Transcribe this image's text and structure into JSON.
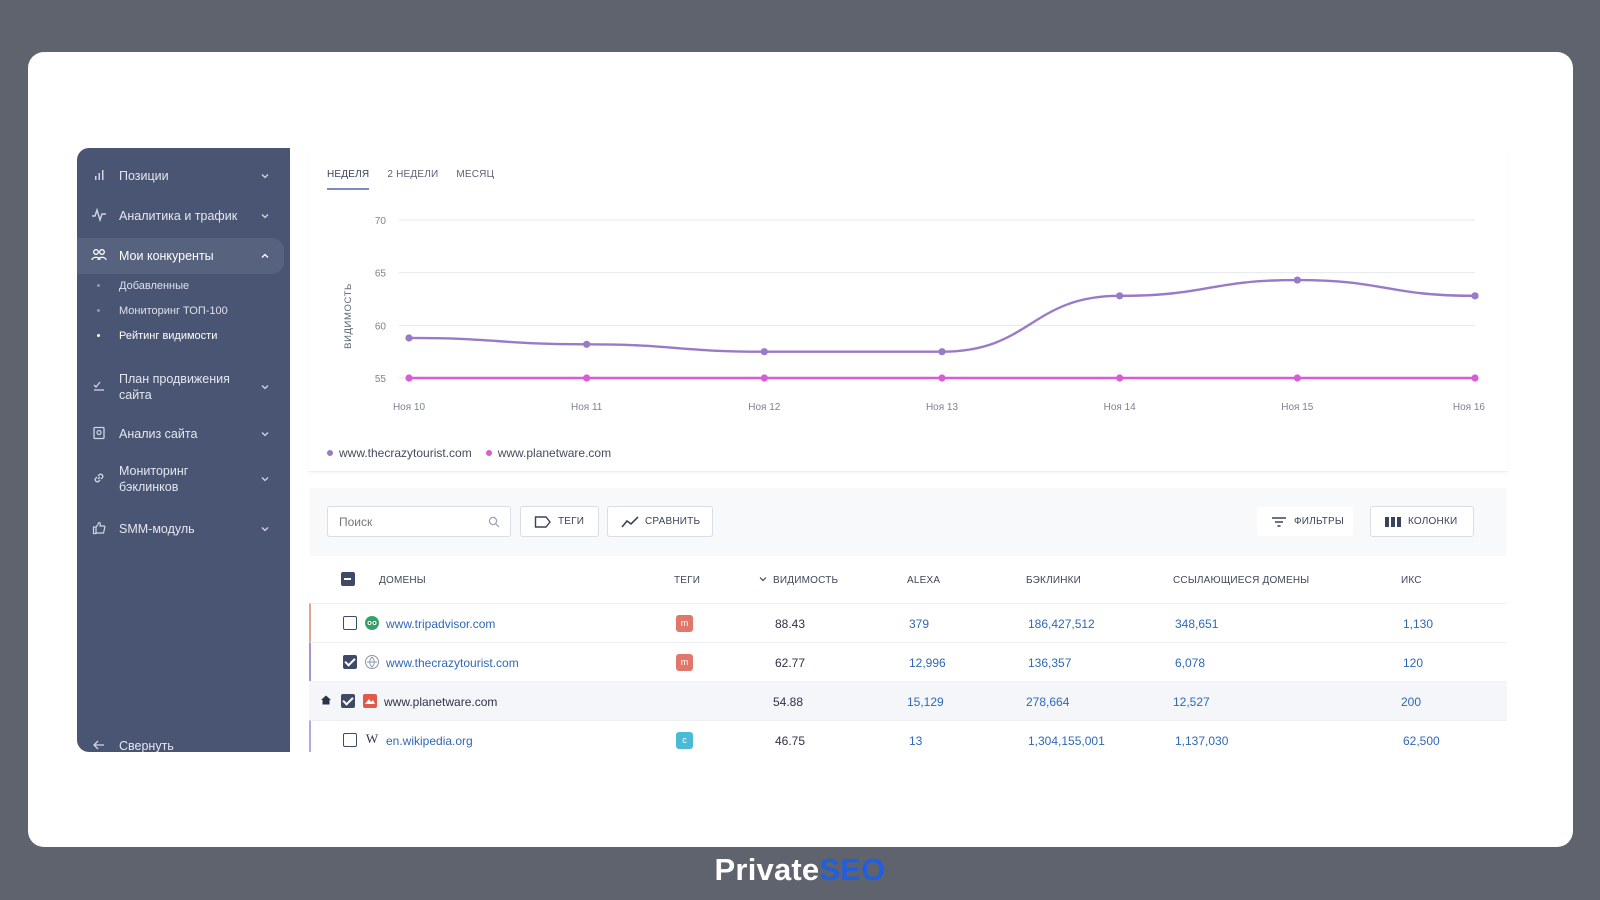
{
  "sidebar": {
    "items": [
      {
        "label": "Позиции"
      },
      {
        "label": "Аналитика и трафик"
      },
      {
        "label": "Мои конкуренты"
      },
      {
        "label": "План продвижения сайта"
      },
      {
        "label": "Анализ сайта"
      },
      {
        "label": "Мониторинг бэклинков"
      },
      {
        "label": "SMM-модуль"
      }
    ],
    "subitems": [
      "Добавленные",
      "Мониторинг ТОП-100",
      "Рейтинг видимости"
    ],
    "collapse_label": "Свернуть"
  },
  "chart_tabs": [
    "НЕДЕЛЯ",
    "2 НЕДЕЛИ",
    "МЕСЯЦ"
  ],
  "chart_data": {
    "type": "line",
    "x": [
      "Ноя 10",
      "Ноя 11",
      "Ноя 12",
      "Ноя 13",
      "Ноя 14",
      "Ноя 15",
      "Ноя 16"
    ],
    "ylabel": "ВИДИМОСТЬ",
    "ylim": [
      55,
      70
    ],
    "yticks": [
      70,
      65,
      60,
      55
    ],
    "grid": true,
    "legend": "bottom-left",
    "series": [
      {
        "name": "www.thecrazytourist.com",
        "color": "#9a7ac8",
        "values": [
          58.8,
          58.2,
          57.5,
          57.5,
          62.8,
          64.3,
          62.8
        ]
      },
      {
        "name": "www.planetware.com",
        "color": "#d95bd6",
        "values": [
          55,
          55,
          55,
          55,
          55,
          55,
          55
        ]
      }
    ]
  },
  "toolbar": {
    "search_placeholder": "Поиск",
    "tags_label": "ТЕГИ",
    "compare_label": "СРАВНИТЬ",
    "filters_label": "ФИЛЬТРЫ",
    "columns_label": "КОЛОНКИ"
  },
  "table": {
    "headers": {
      "domains": "ДОМЕНЫ",
      "tags": "ТЕГИ",
      "visibility": "ВИДИМОСТЬ",
      "alexa": "ALEXA",
      "backlinks": "БЭКЛИНКИ",
      "ref_domains": "ССЫЛАЮЩИЕСЯ ДОМЕНЫ",
      "iks": "ИКС"
    },
    "rows": [
      {
        "domain": "www.tripadvisor.com",
        "tag": "m",
        "visibility": "88.43",
        "alexa": "379",
        "backlinks": "186,427,512",
        "ref_domains": "348,651",
        "iks": "1,130"
      },
      {
        "domain": "www.thecrazytourist.com",
        "tag": "m",
        "visibility": "62.77",
        "alexa": "12,996",
        "backlinks": "136,357",
        "ref_domains": "6,078",
        "iks": "120"
      },
      {
        "domain": "www.planetware.com",
        "tag": "",
        "visibility": "54.88",
        "alexa": "15,129",
        "backlinks": "278,664",
        "ref_domains": "12,527",
        "iks": "200"
      },
      {
        "domain": "en.wikipedia.org",
        "tag": "c",
        "visibility": "46.75",
        "alexa": "13",
        "backlinks": "1,304,155,001",
        "ref_domains": "1,137,030",
        "iks": "62,500"
      }
    ]
  },
  "brand": {
    "part1": "Private",
    "part2": "SEO"
  }
}
